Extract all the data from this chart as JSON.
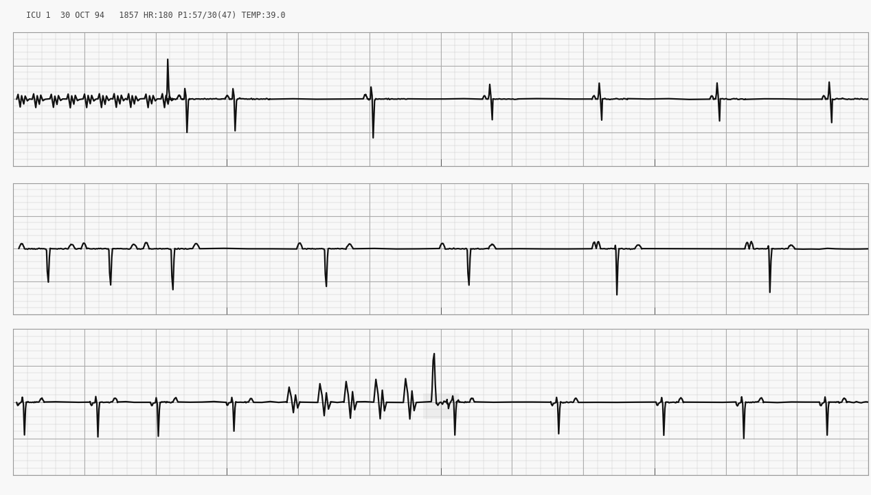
{
  "title": "ICU 1  30 OCT 94   1857 HR:180 P1:57/30(47) TEMP:39.0",
  "background_color": "#f8f8f8",
  "grid_minor_color": "#cccccc",
  "grid_major_color": "#aaaaaa",
  "ecg_color": "#111111",
  "ecg_linewidth": 1.6,
  "strip_count": 3,
  "title_fontsize": 8.5,
  "fig_width": 12.68,
  "fig_height": 7.21,
  "dpi": 100,
  "duration": 12.0
}
